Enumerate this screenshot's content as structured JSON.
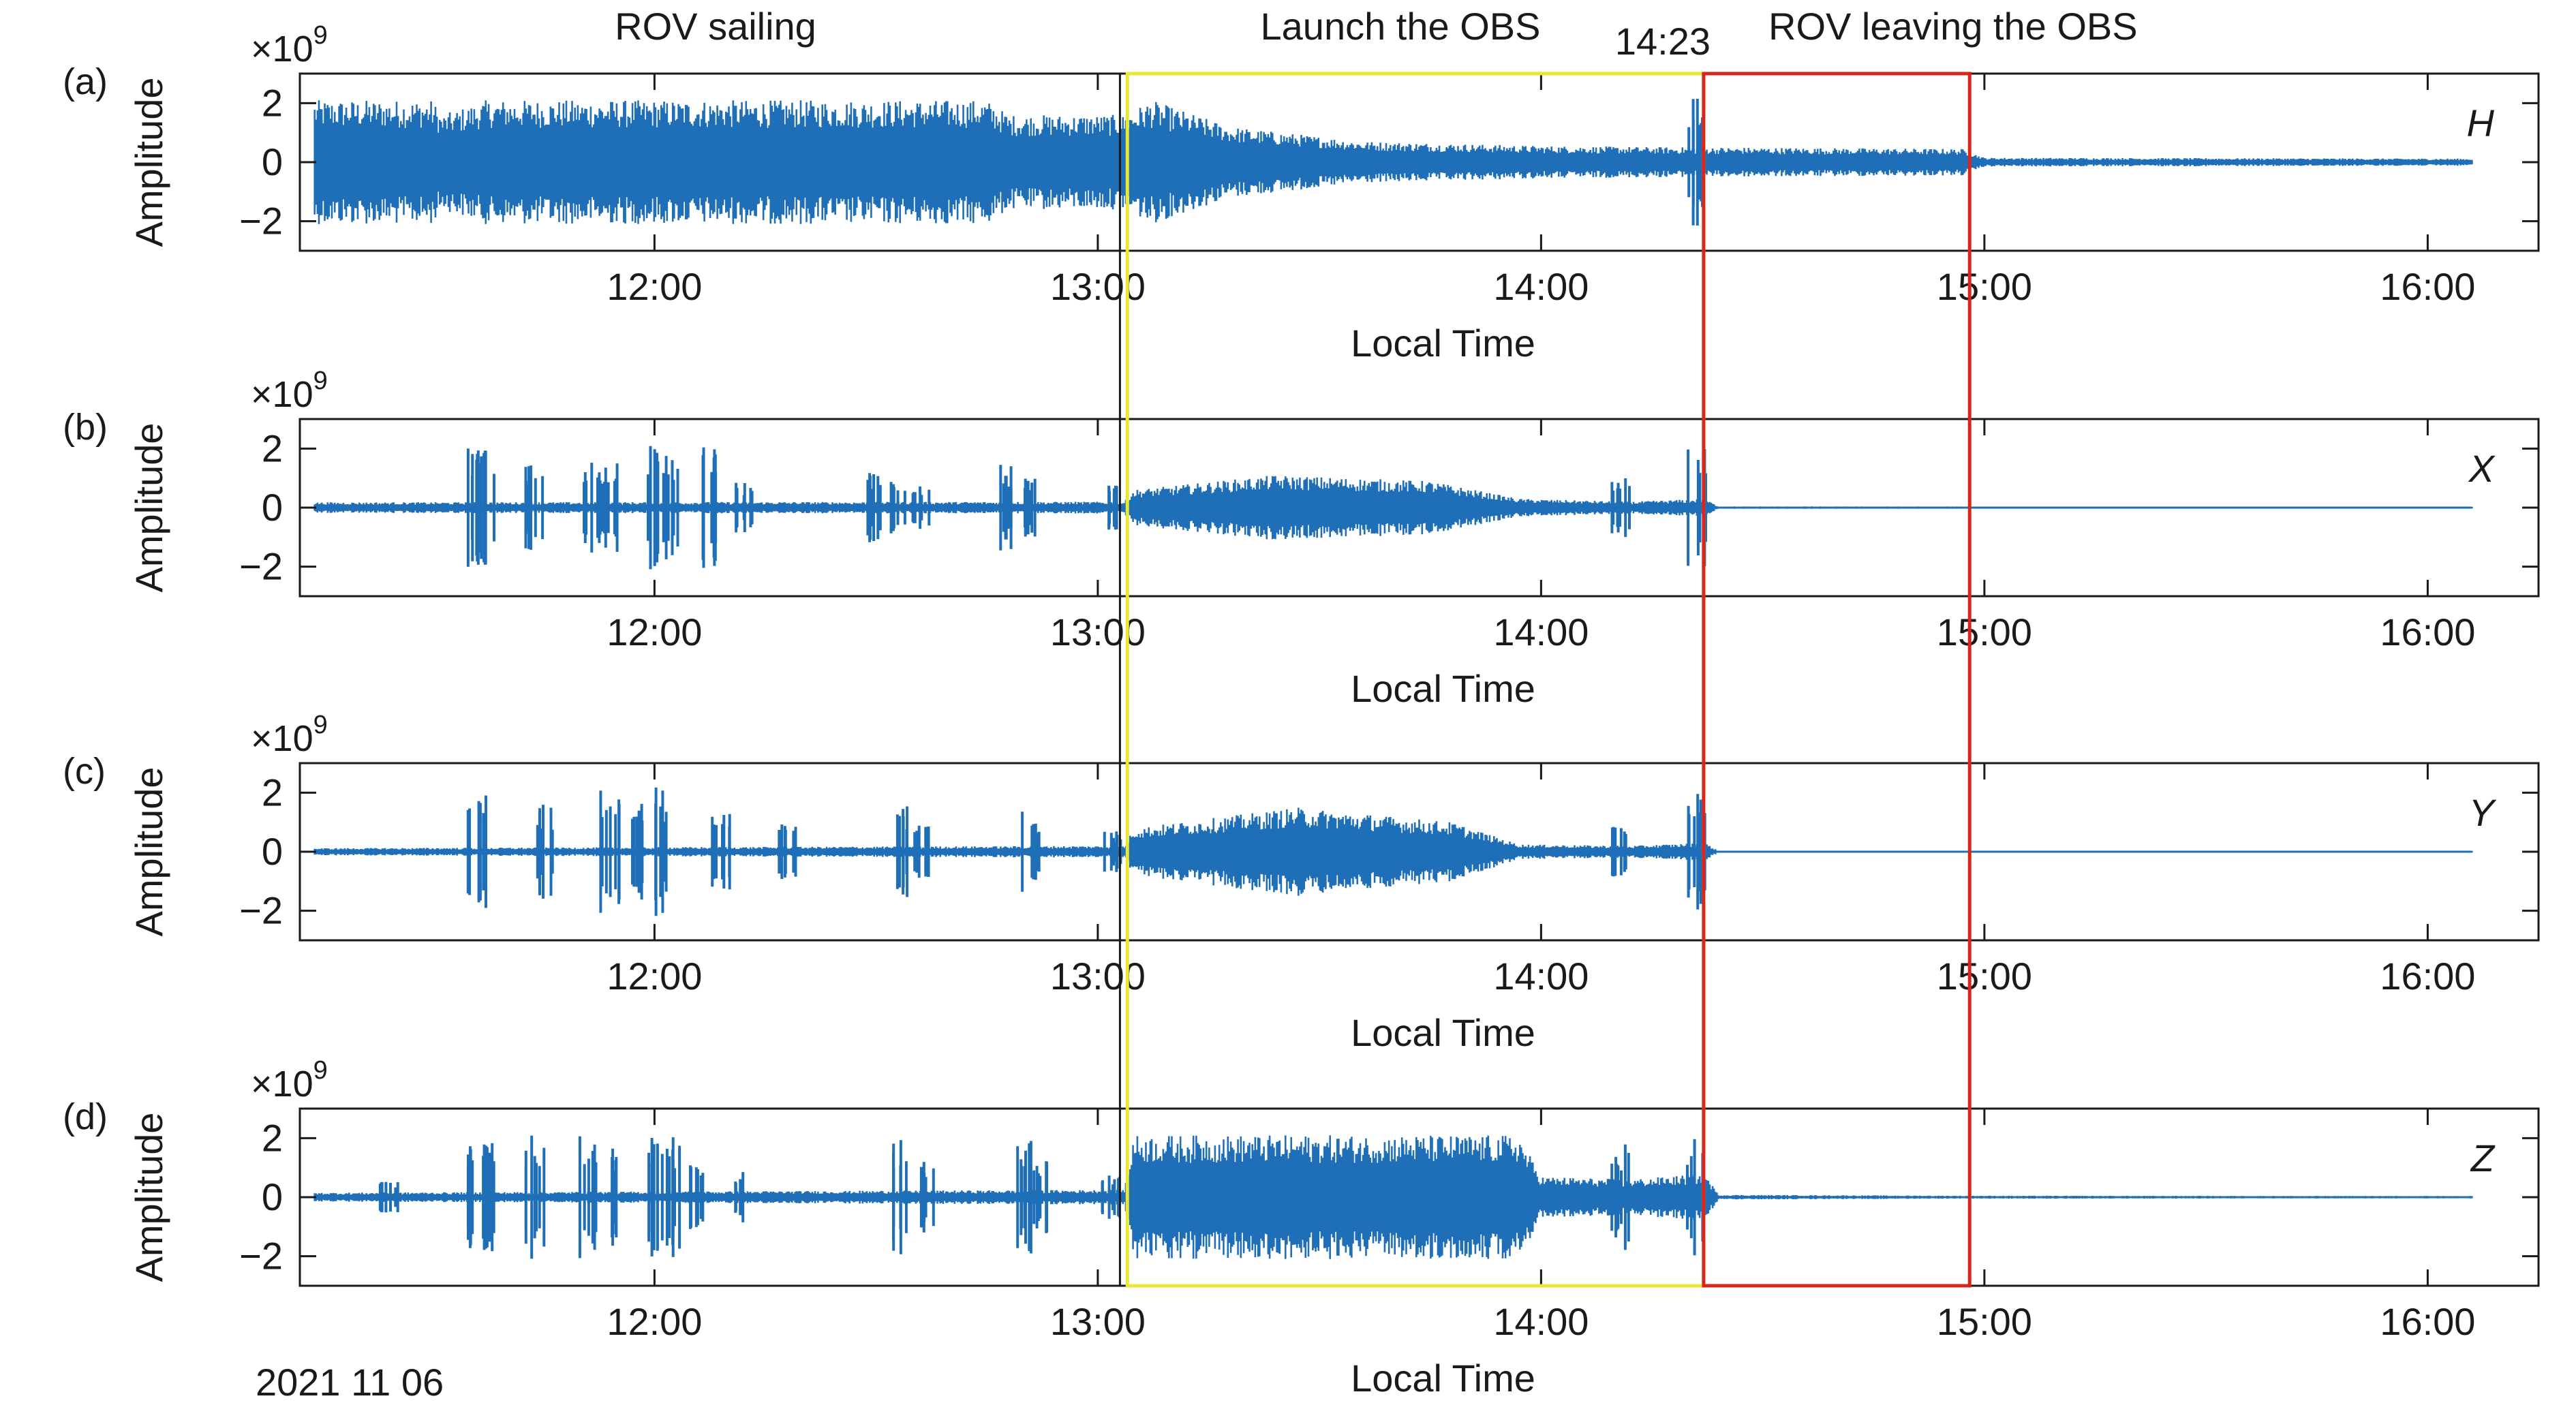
{
  "chart_data": {
    "type": "line",
    "date_label": "2021 11 06",
    "x_axis": {
      "label": "Local Time",
      "ticks": [
        "12:00",
        "13:00",
        "14:00",
        "15:00",
        "16:00"
      ],
      "range": [
        "11:12",
        "16:15"
      ]
    },
    "y_axis": {
      "label": "Amplitude",
      "multiplier": "×10",
      "exponent": "9",
      "ticks": [
        "2",
        "0",
        "−2"
      ],
      "tick_values": [
        2,
        0,
        -2
      ],
      "range": [
        -3,
        3
      ]
    },
    "annotations": {
      "rov_sailing": "ROV sailing",
      "launch": "Launch the OBS",
      "time_marker": "14:23",
      "rov_leaving": "ROV leaving the OBS"
    },
    "intervals": {
      "launch": {
        "start": "13:04",
        "end": "14:22",
        "color": "#e8e832"
      },
      "rov_leaving": {
        "start": "14:22",
        "end": "14:58",
        "color": "#d9261c"
      },
      "black_marker": "13:03"
    },
    "series_color": "#1f6fb8",
    "panels": [
      {
        "letter": "(a)",
        "component": "H",
        "segments": [
          [
            11.2,
            2.1
          ],
          [
            11.5,
            2.1
          ],
          [
            11.52,
            1.6
          ],
          [
            11.62,
            2.1
          ],
          [
            12.75,
            2.1
          ],
          [
            12.8,
            1.6
          ],
          [
            13.06,
            1.6
          ],
          [
            13.12,
            2.1
          ],
          [
            13.3,
            1.2
          ],
          [
            13.6,
            0.7
          ],
          [
            14.0,
            0.55
          ],
          [
            14.35,
            0.5
          ],
          [
            14.4,
            0.5
          ],
          [
            14.95,
            0.45
          ],
          [
            15.0,
            0.15
          ],
          [
            16.1,
            0.12
          ]
        ],
        "bursts": [
          [
            14.35,
            2.2
          ]
        ]
      },
      {
        "letter": "(b)",
        "component": "X",
        "segments": [
          [
            11.2,
            0.18
          ],
          [
            13.06,
            0.2
          ],
          [
            13.08,
            0.6
          ],
          [
            13.4,
            1.1
          ],
          [
            13.75,
            0.9
          ],
          [
            13.95,
            0.3
          ],
          [
            14.2,
            0.2
          ],
          [
            14.37,
            0.3
          ],
          [
            14.4,
            0.04
          ],
          [
            16.1,
            0.03
          ]
        ],
        "bursts": [
          [
            11.6,
            2.1
          ],
          [
            11.62,
            2.0
          ],
          [
            11.73,
            1.5
          ],
          [
            11.86,
            1.9
          ],
          [
            11.9,
            1.5
          ],
          [
            12.0,
            2.1
          ],
          [
            12.04,
            1.8
          ],
          [
            12.12,
            2.1
          ],
          [
            12.2,
            0.9
          ],
          [
            12.5,
            1.2
          ],
          [
            12.55,
            0.9
          ],
          [
            12.6,
            0.8
          ],
          [
            12.8,
            1.5
          ],
          [
            12.85,
            1.0
          ],
          [
            13.03,
            0.8
          ],
          [
            14.18,
            1.1
          ],
          [
            14.35,
            2.1
          ]
        ]
      },
      {
        "letter": "(c)",
        "component": "Y",
        "segments": [
          [
            11.2,
            0.12
          ],
          [
            13.06,
            0.2
          ],
          [
            13.08,
            0.8
          ],
          [
            13.45,
            1.5
          ],
          [
            13.8,
            1.0
          ],
          [
            13.95,
            0.25
          ],
          [
            14.2,
            0.2
          ],
          [
            14.37,
            0.3
          ],
          [
            14.4,
            0.03
          ],
          [
            16.1,
            0.03
          ]
        ],
        "bursts": [
          [
            11.6,
            2.1
          ],
          [
            11.75,
            1.6
          ],
          [
            11.9,
            2.1
          ],
          [
            11.97,
            1.9
          ],
          [
            12.02,
            2.2
          ],
          [
            12.15,
            1.4
          ],
          [
            12.3,
            1.0
          ],
          [
            12.55,
            1.6
          ],
          [
            12.6,
            0.9
          ],
          [
            12.85,
            1.4
          ],
          [
            13.03,
            0.7
          ],
          [
            14.18,
            1.1
          ],
          [
            14.35,
            2.0
          ]
        ]
      },
      {
        "letter": "(d)",
        "component": "Z",
        "segments": [
          [
            11.2,
            0.15
          ],
          [
            13.06,
            0.25
          ],
          [
            13.08,
            2.1
          ],
          [
            13.95,
            2.1
          ],
          [
            14.0,
            0.7
          ],
          [
            14.2,
            0.6
          ],
          [
            14.37,
            0.8
          ],
          [
            14.4,
            0.08
          ],
          [
            14.95,
            0.05
          ],
          [
            16.1,
            0.04
          ]
        ],
        "bursts": [
          [
            11.4,
            0.6
          ],
          [
            11.6,
            2.1
          ],
          [
            11.62,
            2.0
          ],
          [
            11.73,
            2.1
          ],
          [
            11.85,
            2.1
          ],
          [
            11.92,
            1.8
          ],
          [
            12.0,
            2.1
          ],
          [
            12.05,
            2.1
          ],
          [
            12.1,
            1.6
          ],
          [
            12.2,
            0.9
          ],
          [
            12.55,
            2.1
          ],
          [
            12.62,
            1.2
          ],
          [
            12.83,
            2.1
          ],
          [
            12.87,
            1.5
          ],
          [
            13.03,
            0.8
          ],
          [
            14.18,
            2.0
          ],
          [
            14.35,
            2.1
          ]
        ]
      }
    ]
  }
}
